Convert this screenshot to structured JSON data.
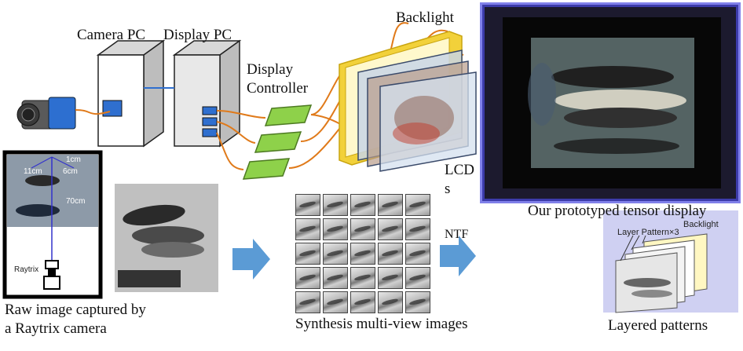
{
  "labels": {
    "camera_pc": "Camera PC",
    "display_pc": "Display PC",
    "display_controller_line1": "Display",
    "display_controller_line2": "Controller",
    "backlight": "Backlight",
    "lcds_line1": "LCD",
    "lcds_line2": "s",
    "prototype_caption": "Our prototyped tensor display",
    "raw_caption_line1": "Raw image captured by",
    "raw_caption_line2": "a Raytrix camera",
    "synthesis_caption": "Synthesis multi-view images",
    "ntf": "NTF",
    "layered_caption": "Layered patterns"
  },
  "setup_inset": {
    "dist_1": "1cm",
    "dist_11": "11cm",
    "dist_6": "6cm",
    "dist_70": "70cm",
    "camera_label": "Raytrix"
  },
  "layered_inset": {
    "layer_label": "Layer Pattern×3",
    "backlight_label": "Backlight"
  },
  "colors": {
    "cable": "#e07a1a",
    "controller_green": "#8ed14a",
    "arrow_blue": "#5b9bd5",
    "backlight_yellow": "#f2d13a",
    "inset_bg": "#cfd0f2",
    "led_blue": "#4a4ae0"
  }
}
